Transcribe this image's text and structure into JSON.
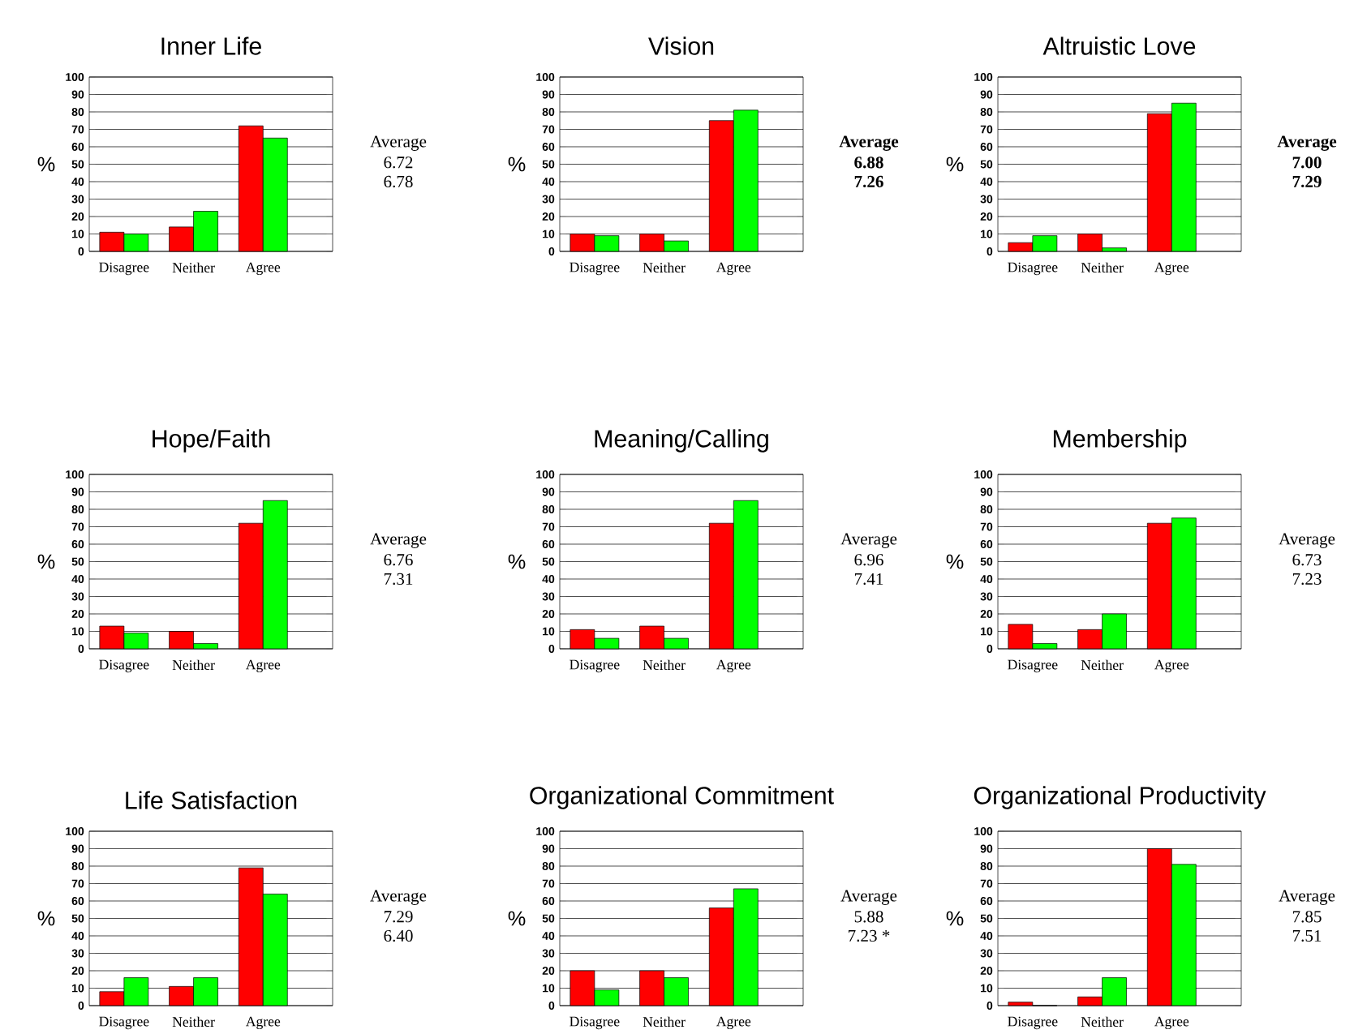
{
  "chart_data": [
    {
      "type": "bar",
      "title": "Inner Life",
      "ylabel": "%",
      "categories": [
        "Disagree",
        "Neither",
        "Agree"
      ],
      "ylim": [
        0,
        100
      ],
      "yticks": [
        0,
        10,
        20,
        30,
        40,
        50,
        60,
        70,
        80,
        90,
        100
      ],
      "grid": "y",
      "annotations": [
        "Average",
        "6.72",
        "6.78"
      ],
      "series": [
        {
          "color": "#ff0000",
          "values": [
            11,
            14,
            72
          ]
        },
        {
          "color": "#00ff00",
          "values": [
            10,
            23,
            65
          ]
        }
      ]
    },
    {
      "type": "bar",
      "title": "Vision",
      "ylabel": "%",
      "categories": [
        "Disagree",
        "Neither",
        "Agree"
      ],
      "ylim": [
        0,
        100
      ],
      "yticks": [
        0,
        10,
        20,
        30,
        40,
        50,
        60,
        70,
        80,
        90,
        100
      ],
      "grid": "y",
      "annotations": [
        "**Average**",
        "**6.88**",
        "**7.26**"
      ],
      "series": [
        {
          "color": "#ff0000",
          "values": [
            10,
            10,
            75
          ]
        },
        {
          "color": "#00ff00",
          "values": [
            9,
            6,
            81
          ]
        }
      ]
    },
    {
      "type": "bar",
      "title": "Altruistic Love",
      "ylabel": "%",
      "categories": [
        "Disagree",
        "Neither",
        "Agree"
      ],
      "ylim": [
        0,
        100
      ],
      "yticks": [
        0,
        10,
        20,
        30,
        40,
        50,
        60,
        70,
        80,
        90,
        100
      ],
      "grid": "y",
      "annotations": [
        "**Average**",
        "**7.00**",
        "**7.29**"
      ],
      "series": [
        {
          "color": "#ff0000",
          "values": [
            5,
            10,
            79
          ]
        },
        {
          "color": "#00ff00",
          "values": [
            9,
            2,
            85
          ]
        }
      ]
    },
    {
      "type": "bar",
      "title": "Hope/Faith",
      "ylabel": "%",
      "categories": [
        "Disagree",
        "Neither",
        "Agree"
      ],
      "ylim": [
        0,
        100
      ],
      "yticks": [
        0,
        10,
        20,
        30,
        40,
        50,
        60,
        70,
        80,
        90,
        100
      ],
      "grid": "y",
      "annotations": [
        "Average",
        "6.76",
        "7.31"
      ],
      "series": [
        {
          "color": "#ff0000",
          "values": [
            13,
            10,
            72
          ]
        },
        {
          "color": "#00ff00",
          "values": [
            9,
            3,
            85
          ]
        }
      ]
    },
    {
      "type": "bar",
      "title": "Meaning/Calling",
      "ylabel": "%",
      "categories": [
        "Disagree",
        "Neither",
        "Agree"
      ],
      "ylim": [
        0,
        100
      ],
      "yticks": [
        0,
        10,
        20,
        30,
        40,
        50,
        60,
        70,
        80,
        90,
        100
      ],
      "grid": "y",
      "annotations": [
        "Average",
        "6.96",
        "7.41"
      ],
      "series": [
        {
          "color": "#ff0000",
          "values": [
            11,
            13,
            72
          ]
        },
        {
          "color": "#00ff00",
          "values": [
            6,
            6,
            85
          ]
        }
      ]
    },
    {
      "type": "bar",
      "title": "Membership",
      "ylabel": "%",
      "categories": [
        "Disagree",
        "Neither",
        "Agree"
      ],
      "ylim": [
        0,
        100
      ],
      "yticks": [
        0,
        10,
        20,
        30,
        40,
        50,
        60,
        70,
        80,
        90,
        100
      ],
      "grid": "y",
      "annotations": [
        "Average",
        "6.73",
        "7.23"
      ],
      "series": [
        {
          "color": "#ff0000",
          "values": [
            14,
            11,
            72
          ]
        },
        {
          "color": "#00ff00",
          "values": [
            3,
            20,
            75
          ]
        }
      ]
    },
    {
      "type": "bar",
      "title": "Life Satisfaction",
      "ylabel": "%",
      "categories": [
        "Disagree",
        "Neither",
        "Agree"
      ],
      "ylim": [
        0,
        100
      ],
      "yticks": [
        0,
        10,
        20,
        30,
        40,
        50,
        60,
        70,
        80,
        90,
        100
      ],
      "grid": "y",
      "annotations": [
        "Average",
        "7.29",
        "6.40"
      ],
      "series": [
        {
          "color": "#ff0000",
          "values": [
            8,
            11,
            79
          ]
        },
        {
          "color": "#00ff00",
          "values": [
            16,
            16,
            64
          ]
        }
      ]
    },
    {
      "type": "bar",
      "title": "Organizational Commitment",
      "ylabel": "%",
      "categories": [
        "Disagree",
        "Neither",
        "Agree"
      ],
      "ylim": [
        0,
        100
      ],
      "yticks": [
        0,
        10,
        20,
        30,
        40,
        50,
        60,
        70,
        80,
        90,
        100
      ],
      "grid": "y",
      "annotations": [
        "Average",
        "5.88",
        "7.23 *"
      ],
      "series": [
        {
          "color": "#ff0000",
          "values": [
            20,
            20,
            56
          ]
        },
        {
          "color": "#00ff00",
          "values": [
            9,
            16,
            67
          ]
        }
      ]
    },
    {
      "type": "bar",
      "title": "Organizational Productivity",
      "ylabel": "%",
      "categories": [
        "Disagree",
        "Neither",
        "Agree"
      ],
      "ylim": [
        0,
        100
      ],
      "yticks": [
        0,
        10,
        20,
        30,
        40,
        50,
        60,
        70,
        80,
        90,
        100
      ],
      "grid": "y",
      "annotations": [
        "Average",
        "7.85",
        "7.51"
      ],
      "series": [
        {
          "color": "#ff0000",
          "values": [
            2,
            5,
            90
          ]
        },
        {
          "color": "#00ff00",
          "values": [
            0,
            16,
            81
          ]
        }
      ]
    }
  ]
}
